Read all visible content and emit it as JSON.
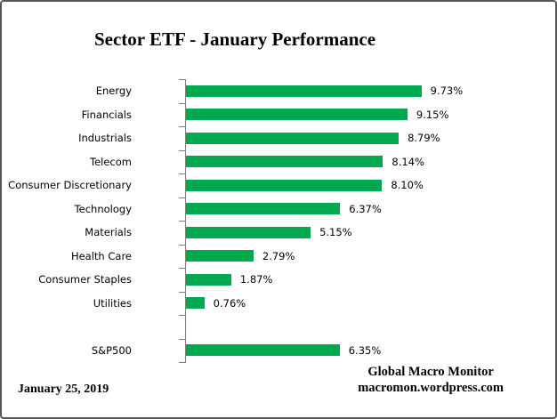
{
  "title": "Sector ETF - January Performance",
  "footer": {
    "date": "January 25, 2019",
    "brand_line1": "Global Macro Monitor",
    "brand_line2": "macromon.wordpress.com"
  },
  "colors": {
    "bar": "#00A94F",
    "axis": "#808080",
    "frame_border": "#565656",
    "text": "#000000"
  },
  "chart_data": {
    "type": "bar",
    "orientation": "horizontal",
    "title": "Sector ETF - January Performance",
    "xlabel": "",
    "ylabel": "",
    "xlim": [
      0,
      11
    ],
    "grid": false,
    "legend": false,
    "value_suffix": "%",
    "categories": [
      "Energy",
      "Financials",
      "Industrials",
      "Telecom",
      "Consumer Discretionary",
      "Technology",
      "Materials",
      "Health Care",
      "Consumer Staples",
      "Utilities",
      "",
      "S&P500"
    ],
    "values": [
      9.73,
      9.15,
      8.79,
      8.14,
      8.1,
      6.37,
      5.15,
      2.79,
      1.87,
      0.76,
      null,
      6.35
    ],
    "value_labels": [
      "9.73%",
      "9.15%",
      "8.79%",
      "8.14%",
      "8.10%",
      "6.37%",
      "5.15%",
      "2.79%",
      "1.87%",
      "0.76%",
      "",
      "6.35%"
    ]
  }
}
